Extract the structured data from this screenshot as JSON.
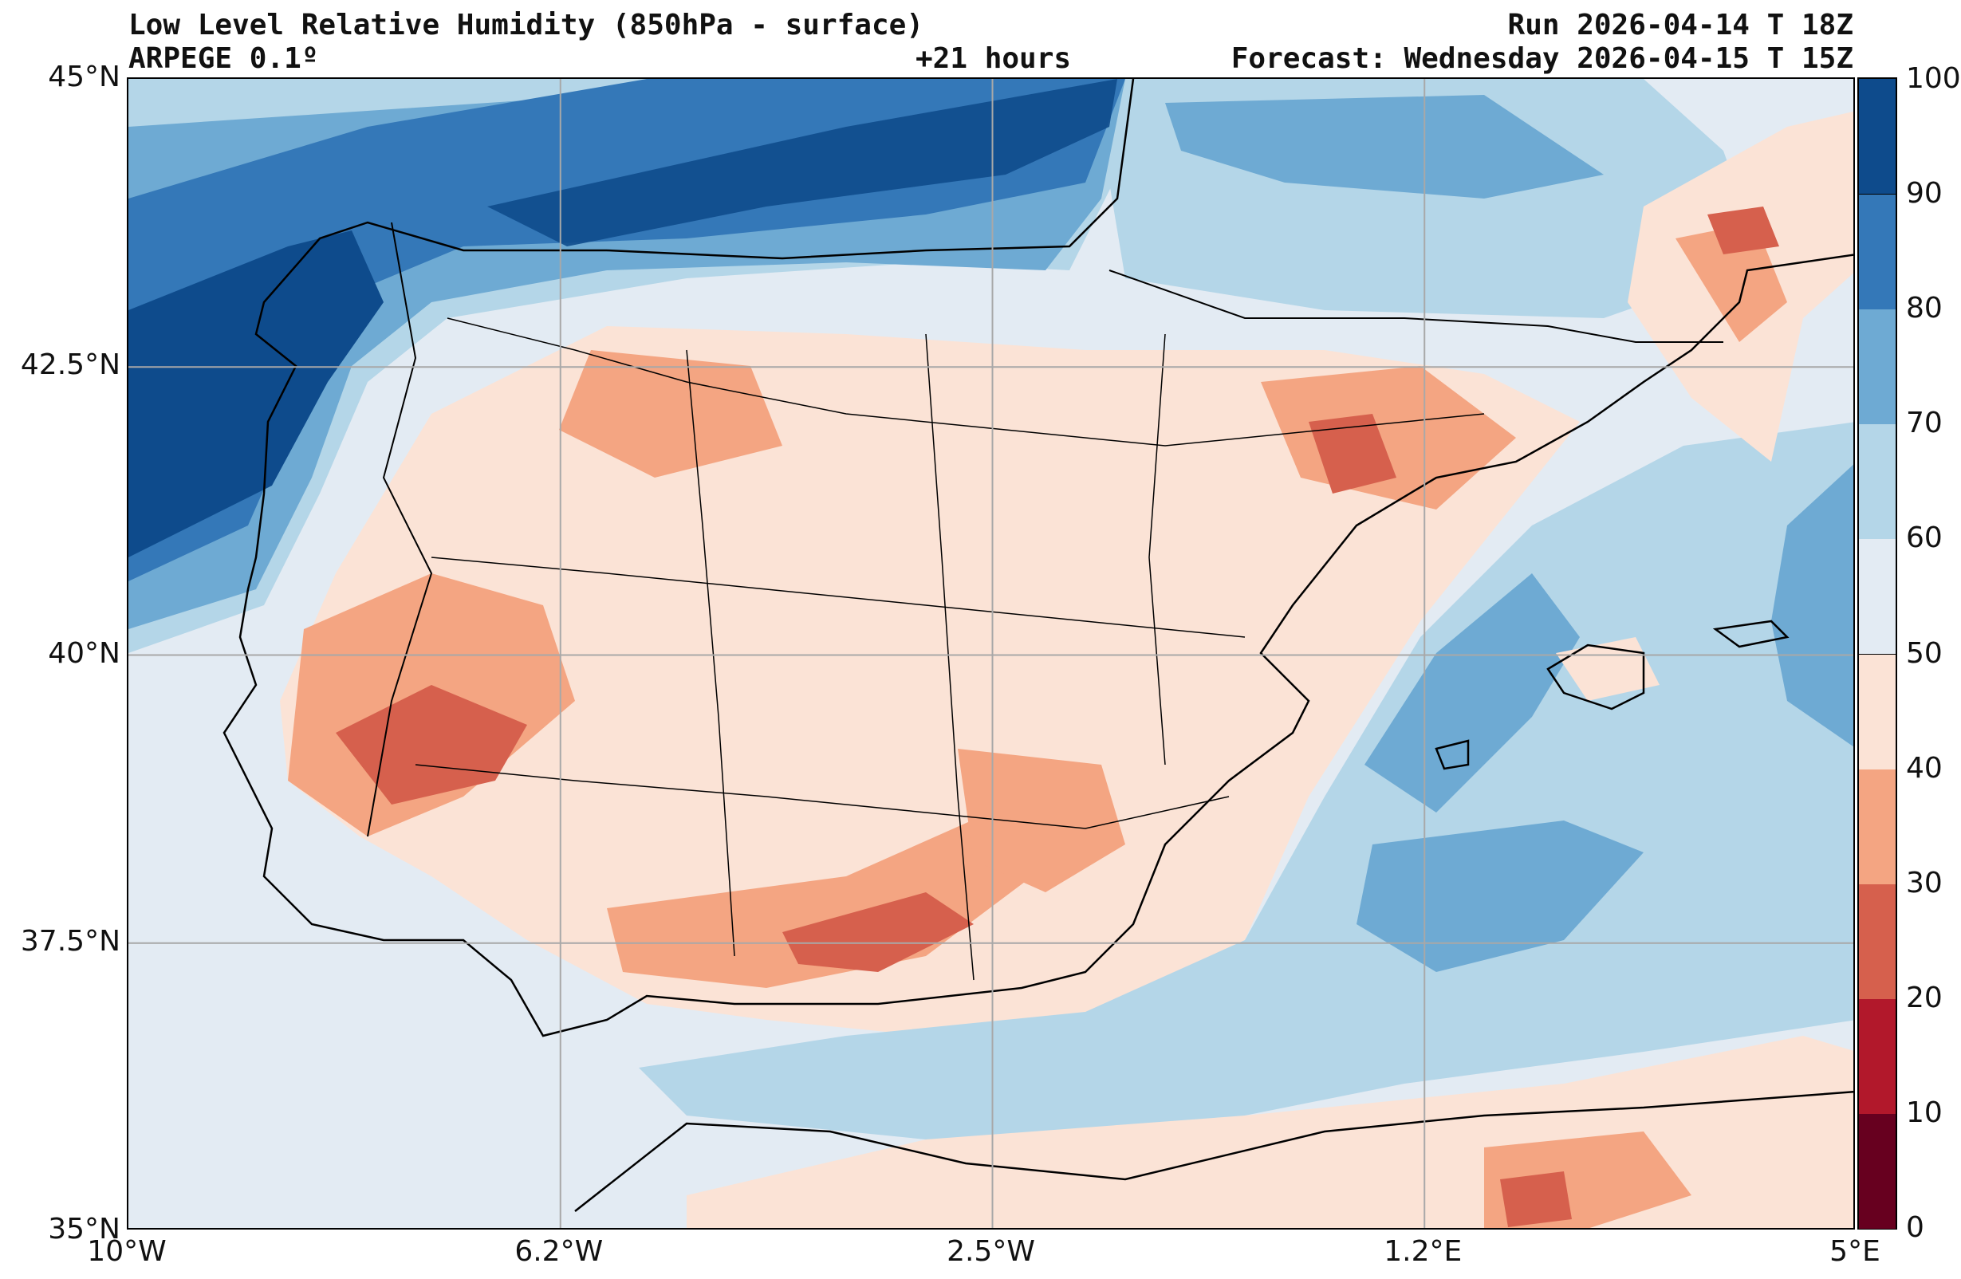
{
  "header": {
    "title": "Low Level Relative Humidity (850hPa - surface)",
    "model": "ARPEGE 0.1º",
    "lead_time": "+21 hours",
    "run": "Run 2026-04-14 T 18Z",
    "forecast": "Forecast: Wednesday 2026-04-15 T 15Z"
  },
  "map": {
    "lon_range": [
      -10,
      5
    ],
    "lat_range": [
      35,
      45
    ],
    "lat_labels": [
      "45°N",
      "42.5°N",
      "40°N",
      "37.5°N",
      "35°N"
    ],
    "lon_labels": [
      "10°W",
      "6.2°W",
      "2.5°W",
      "1.2°E",
      "5°E"
    ],
    "lat_values": [
      45,
      42.5,
      40,
      37.5,
      35
    ],
    "lon_values": [
      -10,
      -6.25,
      -2.5,
      1.25,
      5
    ]
  },
  "colorbar": {
    "levels": [
      0,
      10,
      20,
      30,
      40,
      50,
      60,
      70,
      80,
      90,
      100
    ],
    "labels": [
      "0",
      "10",
      "20",
      "30",
      "40",
      "50",
      "60",
      "70",
      "80",
      "90",
      "100"
    ],
    "colors": [
      "#67001f",
      "#b2182b",
      "#d6604d",
      "#f4a582",
      "#fbe3d6",
      "#e3ebf3",
      "#b4d6e8",
      "#6eaad3",
      "#3478b8",
      "#0e4b8c"
    ]
  }
}
